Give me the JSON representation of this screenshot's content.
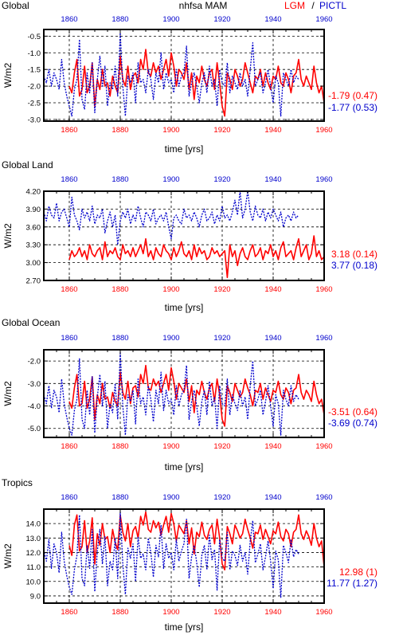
{
  "header": {
    "left_title": "Global",
    "center_title": "nhfsa MAM",
    "legend_lgm": "LGM",
    "legend_sep": "/",
    "legend_pictl": "PICTL"
  },
  "colors": {
    "lgm": "#ff0000",
    "pictl": "#0000cc",
    "axis": "#000000"
  },
  "chart_data": [
    {
      "type": "line",
      "title": "Global",
      "xlabel": "time [yrs]",
      "ylabel": "W/m2",
      "xlim": [
        1850,
        1960
      ],
      "ylim": [
        -3.05,
        -0.3
      ],
      "xticks": [
        1860,
        1880,
        1900,
        1920,
        1940,
        1960
      ],
      "yticks": [
        -3.0,
        -2.5,
        -2.0,
        -1.5,
        -1.0,
        -0.5
      ],
      "ytick_labels": [
        "-3.0",
        "-2.5",
        "-2.0",
        "-1.5",
        "-1.0",
        "-0.5"
      ],
      "grid": true,
      "stats": {
        "lgm": "-1.79 (0.47)",
        "pictl": "-1.77 (0.53)"
      },
      "series": [
        {
          "name": "LGM",
          "x_start": 1860,
          "x_end": 1960,
          "values": [
            -2.0,
            -2.2,
            -1.6,
            -1.2,
            -2.3,
            -2.1,
            -1.4,
            -2.2,
            -2.0,
            -1.3,
            -2.6,
            -1.8,
            -2.1,
            -1.5,
            -2.0,
            -1.9,
            -2.3,
            -1.7,
            -2.0,
            -2.2,
            -1.1,
            -1.8,
            -2.0,
            -1.4,
            -2.1,
            -1.7,
            -1.6,
            -1.9,
            -1.2,
            -1.5,
            -0.9,
            -1.6,
            -1.7,
            -1.3,
            -1.6,
            -1.4,
            -1.8,
            -1.5,
            -1.2,
            -1.7,
            -1.0,
            -1.4,
            -2.0,
            -1.5,
            -1.6,
            -1.8,
            -1.3,
            -2.1,
            -1.6,
            -2.4,
            -1.7,
            -1.9,
            -1.4,
            -1.8,
            -2.0,
            -1.6,
            -1.5,
            -2.1,
            -1.3,
            -1.9,
            -2.6,
            -2.9,
            -1.6,
            -1.8,
            -2.1,
            -1.5,
            -1.7,
            -2.0,
            -1.8,
            -1.3,
            -1.6,
            -1.9,
            -2.2,
            -1.7,
            -1.8,
            -1.5,
            -2.0,
            -1.6,
            -1.9,
            -2.1,
            -1.7,
            -1.8,
            -1.4,
            -1.9,
            -2.0,
            -1.6,
            -1.8,
            -2.2,
            -1.7,
            -1.6,
            -1.2,
            -1.8,
            -2.0,
            -1.7,
            -1.9,
            -2.1,
            -1.4,
            -1.9,
            -2.2,
            -2.0,
            -2.5
          ]
        },
        {
          "name": "PICTL",
          "x_start": 1850,
          "x_end": 1950,
          "values": [
            -1.7,
            -1.9,
            -1.5,
            -2.0,
            -1.6,
            -1.8,
            -2.1,
            -1.2,
            -1.9,
            -2.3,
            -2.6,
            -2.9,
            -2.1,
            -1.8,
            -0.6,
            -2.4,
            -2.7,
            -1.6,
            -2.2,
            -1.3,
            -2.8,
            -1.8,
            -1.1,
            -2.0,
            -1.4,
            -2.6,
            -1.9,
            -2.1,
            -1.4,
            -2.3,
            -0.4,
            -2.0,
            -2.9,
            -1.7,
            -1.9,
            -1.6,
            -2.5,
            -1.3,
            -1.9,
            -1.8,
            -2.2,
            -1.5,
            -1.8,
            -2.4,
            -1.6,
            -1.9,
            -1.0,
            -2.1,
            -1.6,
            -1.9,
            -1.8,
            -2.2,
            -1.5,
            -2.0,
            -1.7,
            -1.6,
            -0.8,
            -2.3,
            -1.9,
            -1.6,
            -2.0,
            -2.5,
            -1.9,
            -1.6,
            -2.2,
            -1.4,
            -2.0,
            -1.8,
            -2.6,
            -1.5,
            -1.9,
            -2.0,
            -1.3,
            -2.2,
            -1.7,
            -1.9,
            -2.1,
            -1.6,
            -2.0,
            -1.8,
            -2.3,
            -1.5,
            -0.7,
            -2.0,
            -1.8,
            -1.6,
            -2.2,
            -1.9,
            -1.5,
            -2.0,
            -2.5,
            -1.7,
            -1.9,
            -2.9,
            -1.6,
            -1.8,
            -2.0,
            -1.5,
            -1.9,
            -1.7,
            -1.8
          ]
        }
      ]
    },
    {
      "type": "line",
      "title": "Global Land",
      "xlabel": "time [yrs]",
      "ylabel": "W/m2",
      "xlim": [
        1850,
        1960
      ],
      "ylim": [
        2.7,
        4.2
      ],
      "xticks": [
        1860,
        1880,
        1900,
        1920,
        1940,
        1960
      ],
      "yticks": [
        2.7,
        3.0,
        3.3,
        3.6,
        3.9,
        4.2
      ],
      "ytick_labels": [
        "2.70",
        "3.00",
        "3.30",
        "3.60",
        "3.90",
        "4.20"
      ],
      "grid": true,
      "stats": {
        "lgm": "3.18 (0.14)",
        "pictl": "3.77 (0.18)"
      },
      "series": [
        {
          "name": "LGM",
          "x_start": 1860,
          "x_end": 1960,
          "values": [
            3.05,
            3.2,
            3.1,
            3.15,
            3.25,
            3.1,
            3.2,
            3.05,
            3.3,
            3.15,
            3.1,
            3.2,
            3.25,
            3.05,
            3.35,
            3.1,
            3.2,
            3.15,
            3.25,
            3.1,
            3.05,
            3.3,
            3.15,
            3.2,
            3.1,
            3.25,
            3.1,
            3.2,
            3.3,
            3.15,
            3.4,
            3.1,
            3.2,
            3.05,
            3.25,
            3.15,
            3.1,
            3.3,
            3.2,
            3.15,
            3.05,
            3.25,
            3.1,
            3.2,
            3.35,
            3.15,
            3.1,
            3.2,
            3.05,
            3.3,
            3.1,
            3.25,
            3.15,
            3.2,
            3.05,
            3.1,
            3.25,
            3.15,
            3.2,
            3.1,
            3.15,
            3.2,
            2.75,
            3.3,
            3.1,
            3.2,
            2.95,
            3.15,
            3.25,
            3.1,
            3.05,
            3.2,
            3.3,
            3.1,
            3.15,
            3.25,
            3.05,
            3.2,
            3.15,
            3.3,
            3.1,
            3.2,
            3.05,
            3.25,
            3.35,
            3.1,
            3.15,
            3.2,
            3.05,
            3.25,
            3.4,
            3.1,
            3.2,
            3.3,
            3.05,
            3.15,
            3.45,
            3.1,
            3.2,
            3.05,
            3.1
          ]
        },
        {
          "name": "PICTL",
          "x_start": 1850,
          "x_end": 1950,
          "values": [
            3.85,
            3.7,
            3.95,
            3.8,
            3.75,
            4.0,
            3.7,
            3.85,
            3.9,
            3.75,
            3.6,
            4.1,
            3.8,
            3.7,
            3.55,
            3.9,
            3.75,
            3.85,
            3.7,
            3.95,
            3.65,
            3.8,
            3.75,
            3.9,
            3.5,
            3.7,
            3.85,
            3.6,
            3.8,
            3.3,
            3.7,
            3.85,
            3.75,
            3.9,
            3.65,
            3.8,
            3.7,
            3.95,
            3.75,
            3.6,
            3.85,
            3.8,
            3.7,
            3.9,
            3.65,
            3.75,
            3.8,
            3.7,
            3.85,
            3.6,
            3.4,
            3.75,
            3.8,
            3.7,
            3.65,
            3.9,
            3.75,
            3.8,
            3.7,
            3.85,
            3.75,
            3.6,
            3.8,
            3.9,
            3.7,
            3.75,
            3.85,
            3.65,
            3.8,
            3.7,
            3.95,
            3.75,
            3.8,
            3.7,
            3.85,
            4.05,
            3.8,
            4.2,
            3.75,
            3.9,
            4.2,
            3.85,
            3.7,
            3.95,
            3.8,
            3.75,
            3.9,
            3.7,
            3.85,
            3.75,
            3.9,
            3.8,
            3.7,
            3.85,
            3.6,
            3.75,
            3.8,
            3.7,
            3.85,
            3.75,
            3.8
          ]
        }
      ]
    },
    {
      "type": "line",
      "title": "Global Ocean",
      "xlabel": "time [yrs]",
      "ylabel": "W/m2",
      "xlim": [
        1850,
        1960
      ],
      "ylim": [
        -5.4,
        -1.5
      ],
      "xticks": [
        1860,
        1880,
        1900,
        1920,
        1940,
        1960
      ],
      "yticks": [
        -5.0,
        -4.0,
        -3.0,
        -2.0
      ],
      "ytick_labels": [
        "-5.0",
        "-4.0",
        "-3.0",
        "-2.0"
      ],
      "grid": true,
      "stats": {
        "lgm": "-3.51 (0.64)",
        "pictl": "-3.69 (0.74)"
      },
      "series": [
        {
          "name": "LGM",
          "x_start": 1860,
          "x_end": 1960,
          "values": [
            -3.8,
            -4.1,
            -3.2,
            -2.6,
            -4.0,
            -3.9,
            -2.9,
            -4.1,
            -3.7,
            -2.7,
            -4.6,
            -3.5,
            -3.9,
            -3.0,
            -3.7,
            -3.6,
            -4.1,
            -3.4,
            -3.8,
            -4.0,
            -2.5,
            -3.4,
            -3.7,
            -2.9,
            -3.9,
            -3.2,
            -3.1,
            -3.6,
            -2.6,
            -3.0,
            -2.2,
            -3.2,
            -3.3,
            -2.8,
            -3.1,
            -2.9,
            -3.4,
            -3.0,
            -2.6,
            -3.3,
            -2.3,
            -2.9,
            -3.7,
            -3.0,
            -3.2,
            -3.4,
            -2.8,
            -3.8,
            -3.1,
            -4.3,
            -3.3,
            -3.5,
            -2.9,
            -3.4,
            -3.7,
            -3.2,
            -3.0,
            -3.8,
            -2.8,
            -3.5,
            -4.6,
            -4.9,
            -3.1,
            -3.4,
            -3.8,
            -3.0,
            -3.3,
            -3.6,
            -3.4,
            -2.8,
            -3.2,
            -3.5,
            -4.0,
            -3.3,
            -3.4,
            -3.0,
            -3.7,
            -3.2,
            -3.5,
            -3.8,
            -3.3,
            -3.4,
            -2.9,
            -3.5,
            -3.7,
            -3.2,
            -3.4,
            -3.9,
            -3.3,
            -3.2,
            -2.6,
            -3.4,
            -3.7,
            -3.3,
            -3.5,
            -3.8,
            -2.9,
            -3.5,
            -3.9,
            -3.7,
            -4.4
          ]
        },
        {
          "name": "PICTL",
          "x_start": 1850,
          "x_end": 1950,
          "values": [
            -3.5,
            -3.9,
            -3.1,
            -4.1,
            -3.3,
            -3.6,
            -4.3,
            -2.8,
            -3.9,
            -4.5,
            -5.0,
            -5.3,
            -4.2,
            -3.7,
            -1.9,
            -4.6,
            -5.0,
            -3.3,
            -4.4,
            -2.7,
            -5.2,
            -3.6,
            -2.6,
            -4.0,
            -2.9,
            -5.0,
            -3.9,
            -4.3,
            -3.0,
            -4.6,
            -1.6,
            -4.0,
            -5.3,
            -3.5,
            -3.8,
            -3.3,
            -4.8,
            -2.8,
            -3.9,
            -3.6,
            -4.4,
            -3.1,
            -3.7,
            -4.7,
            -3.3,
            -3.9,
            -2.5,
            -4.2,
            -3.3,
            -3.9,
            -3.7,
            -4.4,
            -3.1,
            -4.0,
            -3.5,
            -3.3,
            -2.2,
            -4.6,
            -3.8,
            -3.3,
            -4.0,
            -4.9,
            -3.8,
            -3.3,
            -4.4,
            -2.9,
            -4.0,
            -3.6,
            -5.0,
            -3.1,
            -3.9,
            -4.0,
            -2.8,
            -4.4,
            -3.5,
            -3.9,
            -4.2,
            -3.3,
            -4.0,
            -3.6,
            -4.6,
            -3.1,
            -2.0,
            -4.0,
            -3.7,
            -3.3,
            -4.4,
            -3.8,
            -3.1,
            -4.0,
            -4.9,
            -3.5,
            -3.9,
            -5.3,
            -3.3,
            -3.7,
            -4.0,
            -3.1,
            -3.8,
            -3.5,
            -3.7
          ]
        }
      ]
    },
    {
      "type": "line",
      "title": "Tropics",
      "xlabel": "time [yrs]",
      "ylabel": "W/m2",
      "xlim": [
        1850,
        1960
      ],
      "ylim": [
        8.5,
        15.0
      ],
      "xticks": [
        1860,
        1880,
        1900,
        1920,
        1940,
        1960
      ],
      "yticks": [
        9.0,
        10.0,
        11.0,
        12.0,
        13.0,
        14.0
      ],
      "ytick_labels": [
        "9.0",
        "10.0",
        "11.0",
        "12.0",
        "13.0",
        "14.0"
      ],
      "grid": true,
      "stats": {
        "lgm": "12.98 (1)",
        "pictl": "11.77 (1.27)"
      },
      "series": [
        {
          "name": "LGM",
          "x_start": 1860,
          "x_end": 1960,
          "values": [
            12.5,
            11.8,
            13.9,
            14.6,
            12.1,
            12.4,
            14.2,
            12.0,
            12.8,
            14.4,
            11.2,
            13.3,
            12.5,
            14.0,
            12.9,
            13.1,
            12.0,
            13.6,
            12.7,
            12.2,
            14.6,
            13.4,
            12.8,
            14.0,
            12.4,
            13.5,
            13.8,
            13.0,
            14.5,
            13.9,
            14.8,
            13.6,
            13.4,
            14.2,
            13.7,
            14.1,
            13.2,
            13.9,
            14.5,
            13.4,
            14.7,
            14.0,
            12.8,
            13.9,
            13.6,
            13.3,
            14.2,
            12.6,
            13.7,
            11.9,
            13.4,
            13.1,
            14.1,
            13.2,
            12.9,
            13.6,
            13.9,
            12.6,
            14.3,
            13.0,
            11.2,
            10.8,
            13.8,
            13.3,
            12.6,
            13.9,
            13.5,
            13.0,
            13.3,
            14.3,
            13.6,
            13.0,
            12.3,
            13.4,
            13.3,
            13.9,
            12.9,
            13.6,
            13.1,
            12.6,
            13.5,
            13.3,
            14.1,
            13.1,
            12.8,
            13.6,
            13.3,
            12.4,
            13.4,
            13.6,
            14.6,
            13.3,
            12.9,
            13.5,
            13.1,
            12.5,
            14.0,
            13.0,
            12.4,
            12.8,
            11.0
          ]
        },
        {
          "name": "PICTL",
          "x_start": 1850,
          "x_end": 1950,
          "values": [
            12.2,
            11.4,
            12.9,
            10.9,
            12.6,
            12.0,
            10.6,
            13.4,
            11.4,
            10.4,
            9.6,
            9.1,
            10.8,
            11.8,
            14.6,
            10.2,
            9.7,
            12.5,
            10.9,
            13.6,
            9.3,
            12.1,
            13.6,
            11.2,
            13.1,
            9.7,
            11.4,
            10.8,
            13.0,
            10.2,
            14.8,
            11.2,
            9.1,
            12.3,
            11.6,
            12.6,
            10.0,
            13.1,
            11.6,
            11.9,
            10.8,
            13.0,
            12.0,
            10.3,
            12.5,
            11.7,
            13.9,
            10.9,
            12.6,
            11.6,
            12.0,
            10.8,
            12.9,
            11.4,
            12.1,
            12.6,
            14.3,
            10.2,
            11.7,
            12.5,
            11.3,
            9.6,
            11.8,
            12.5,
            10.8,
            13.2,
            11.5,
            12.2,
            9.4,
            12.9,
            11.6,
            11.4,
            13.4,
            10.8,
            12.1,
            11.8,
            11.1,
            12.5,
            11.4,
            12.0,
            10.5,
            12.8,
            14.2,
            11.3,
            11.9,
            12.6,
            10.8,
            11.7,
            12.8,
            11.4,
            9.5,
            12.1,
            11.5,
            8.9,
            12.5,
            12.0,
            11.3,
            12.9,
            11.7,
            12.2,
            11.9
          ]
        }
      ]
    }
  ]
}
